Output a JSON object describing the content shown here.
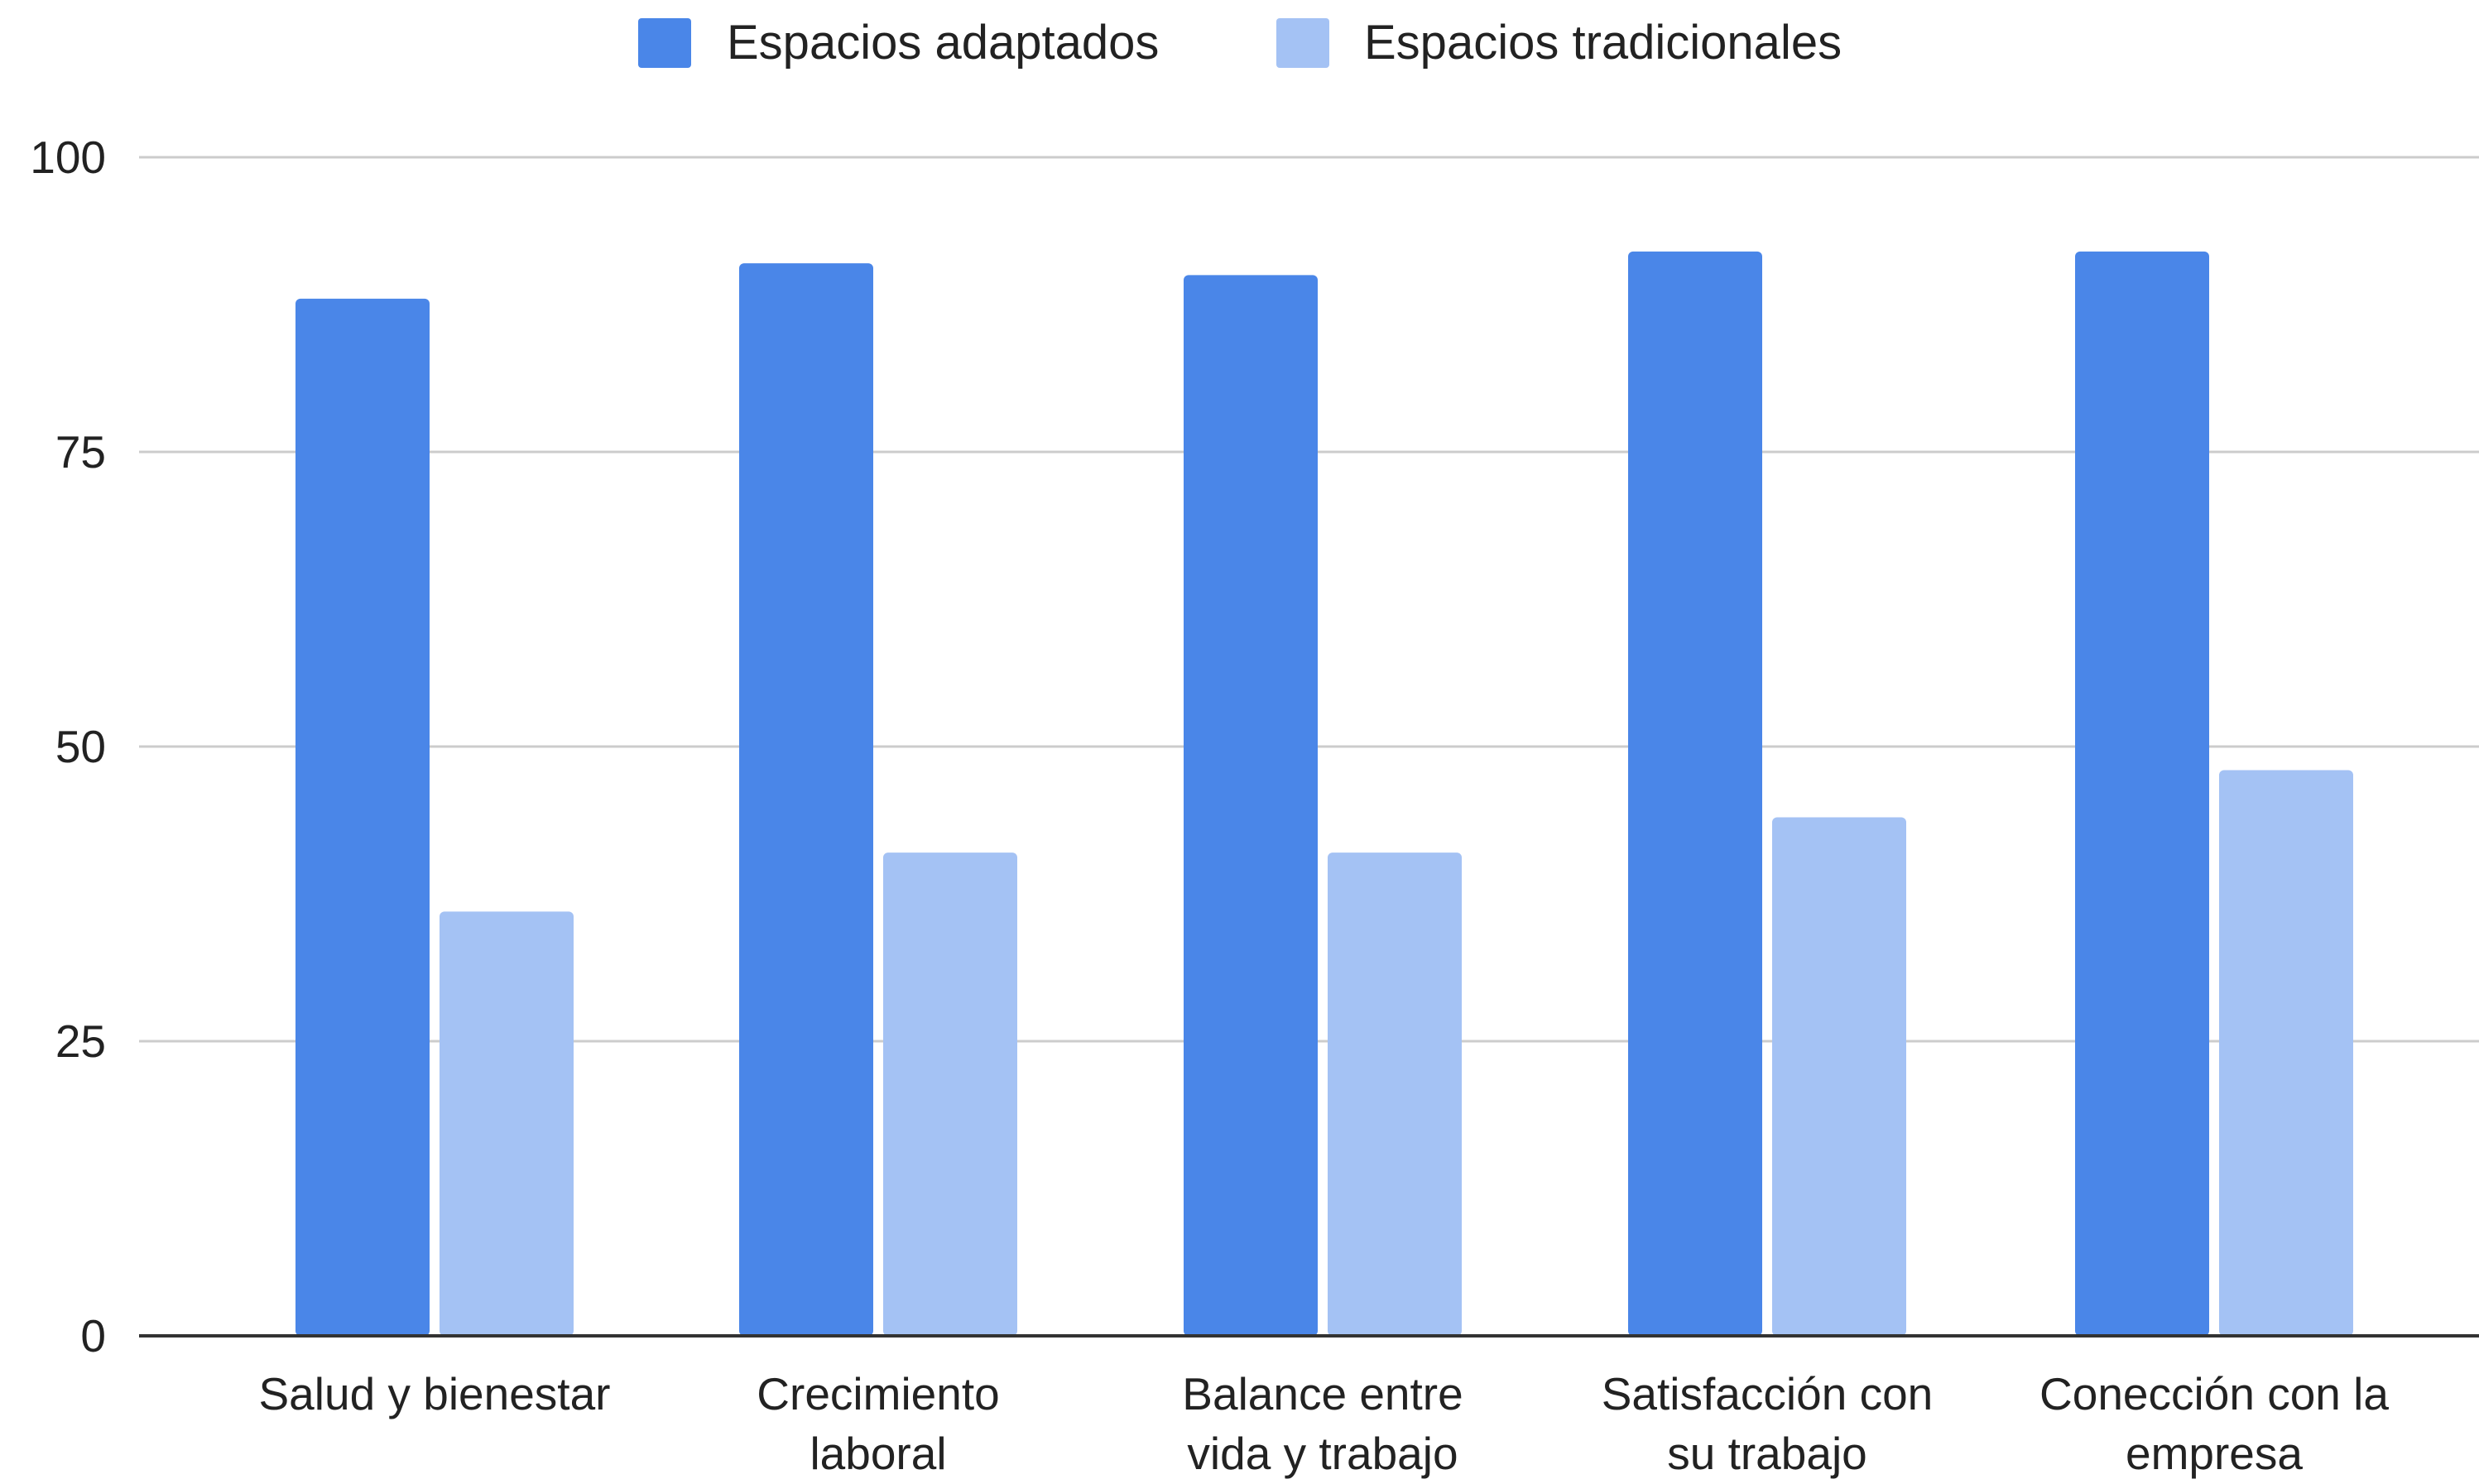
{
  "chart_data": {
    "type": "bar",
    "title": "",
    "xlabel": "",
    "ylabel": "",
    "categories": [
      [
        "Salud y bienestar"
      ],
      [
        "Crecimiento",
        "laboral"
      ],
      [
        "Balance entre",
        "vida y trabajo"
      ],
      [
        "Satisfacción con",
        "su trabajo"
      ],
      [
        "Conección con la",
        "empresa"
      ]
    ],
    "series": [
      {
        "name": "Espacios adaptados",
        "color": "#4a86e8",
        "values": [
          88,
          91,
          90,
          92,
          92
        ]
      },
      {
        "name": "Espacios tradicionales",
        "color": "#a4c2f4",
        "values": [
          36,
          41,
          41,
          44,
          48
        ]
      }
    ],
    "ylim": [
      0,
      100
    ],
    "yticks": [
      0,
      25,
      50,
      75,
      100
    ],
    "grid": true,
    "legend_position": "top-center"
  }
}
